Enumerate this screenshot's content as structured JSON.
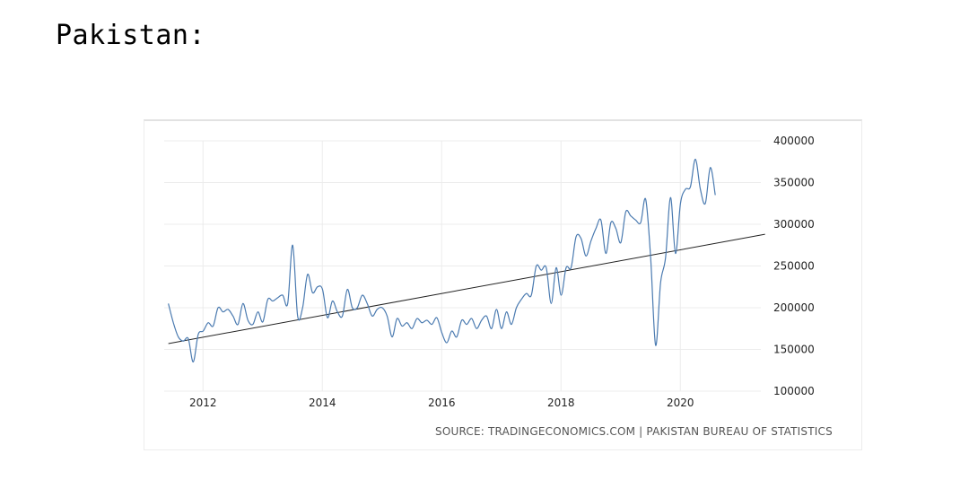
{
  "page": {
    "heading": "Pakistan:"
  },
  "chart_data": {
    "type": "line",
    "title": "",
    "xlabel": "",
    "ylabel": "",
    "source": "SOURCE: TRADINGECONOMICS.COM | PAKISTAN BUREAU OF STATISTICS",
    "x_ticks": [
      "2012",
      "2014",
      "2016",
      "2018",
      "2020"
    ],
    "y_ticks": [
      "100000",
      "150000",
      "200000",
      "250000",
      "300000",
      "350000",
      "400000"
    ],
    "xlim": [
      2011.35,
      2021.35
    ],
    "ylim": [
      100000,
      400000
    ],
    "grid": true,
    "colors": {
      "series": "#4a7ab0",
      "trend": "#222222",
      "grid": "#ececec"
    },
    "series": [
      {
        "start": 2011.42,
        "step": 0.08333,
        "values": [
          205000,
          182000,
          165000,
          160000,
          163000,
          135000,
          168000,
          172000,
          182000,
          178000,
          200000,
          195000,
          198000,
          190000,
          180000,
          205000,
          185000,
          180000,
          195000,
          183000,
          210000,
          208000,
          212000,
          215000,
          205000,
          275000,
          190000,
          200000,
          240000,
          218000,
          225000,
          222000,
          188000,
          208000,
          195000,
          190000,
          222000,
          200000,
          200000,
          215000,
          205000,
          190000,
          198000,
          200000,
          190000,
          165000,
          187000,
          178000,
          182000,
          175000,
          187000,
          182000,
          185000,
          180000,
          188000,
          170000,
          158000,
          172000,
          165000,
          185000,
          180000,
          187000,
          175000,
          185000,
          190000,
          175000,
          198000,
          175000,
          195000,
          180000,
          200000,
          210000,
          217000,
          215000,
          250000,
          245000,
          248000,
          205000,
          248000,
          215000,
          248000,
          248000,
          285000,
          283000,
          262000,
          280000,
          295000,
          305000,
          265000,
          302000,
          295000,
          278000,
          315000,
          310000,
          305000,
          302000,
          330000,
          260000,
          155000,
          230000,
          260000,
          332000,
          265000,
          325000,
          342000,
          345000,
          378000,
          342000,
          325000,
          368000,
          335000
        ]
      }
    ],
    "trendline": {
      "x": [
        2011.42,
        2021.42
      ],
      "y": [
        157000,
        288000
      ]
    }
  }
}
